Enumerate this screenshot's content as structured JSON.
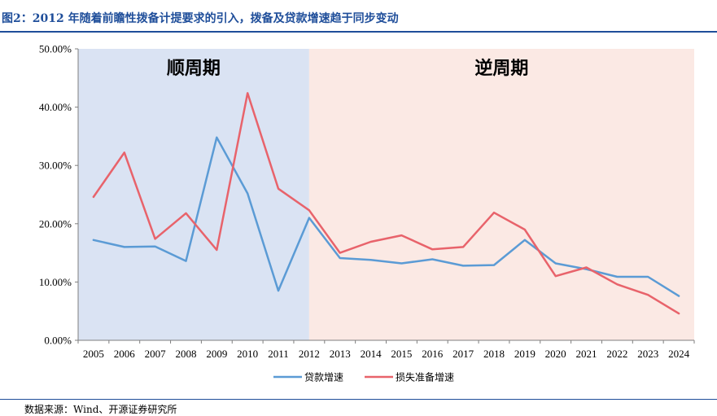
{
  "figure": {
    "title": "图2：2012 年随着前瞻性拨备计提要求的引入，拨备及贷款增速趋于同步变动",
    "source": "数据来源：Wind、开源证券研究所"
  },
  "chart_data": {
    "type": "line",
    "x": [
      "2005",
      "2006",
      "2007",
      "2008",
      "2009",
      "2010",
      "2011",
      "2012",
      "2013",
      "2014",
      "2015",
      "2016",
      "2017",
      "2018",
      "2019",
      "2020",
      "2021",
      "2022",
      "2023",
      "2024"
    ],
    "series": [
      {
        "name": "贷款增速",
        "color": "#5b9bd5",
        "values": [
          17.2,
          16.0,
          16.1,
          13.6,
          34.8,
          25.2,
          8.5,
          21.0,
          14.1,
          13.8,
          13.2,
          13.9,
          12.8,
          12.9,
          17.2,
          13.2,
          12.2,
          10.9,
          10.9,
          7.6
        ]
      },
      {
        "name": "损失准备增速",
        "color": "#e8636b",
        "values": [
          24.6,
          32.2,
          17.4,
          21.8,
          15.5,
          42.4,
          26.0,
          22.3,
          15.0,
          16.9,
          18.0,
          15.6,
          16.0,
          21.9,
          19.0,
          11.0,
          12.5,
          9.6,
          7.8,
          4.6
        ]
      }
    ],
    "ylim": [
      0,
      50
    ],
    "yticks": [
      "0.00%",
      "10.00%",
      "20.00%",
      "30.00%",
      "40.00%",
      "50.00%"
    ],
    "regions": [
      {
        "label": "顺周期",
        "from": "2005",
        "to": "2012",
        "color": "#dae3f3"
      },
      {
        "label": "逆周期",
        "from": "2012",
        "to": "2024",
        "color": "#fbe9e4"
      }
    ],
    "legend_position": "bottom",
    "grid": false
  }
}
